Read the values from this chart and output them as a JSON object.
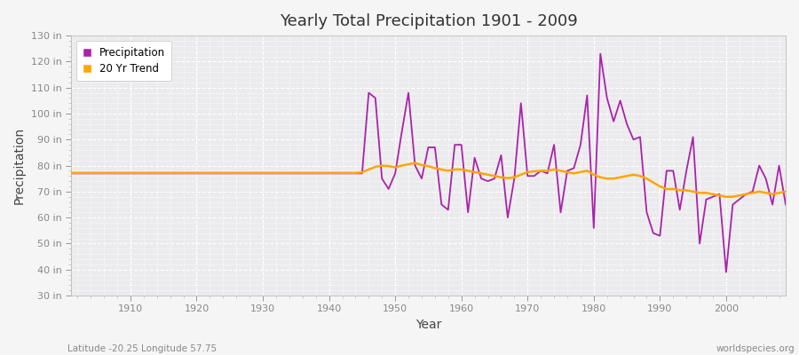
{
  "title": "Yearly Total Precipitation 1901 - 2009",
  "xlabel": "Year",
  "ylabel": "Precipitation",
  "subtitle": "Latitude -20.25 Longitude 57.75",
  "watermark": "worldspecies.org",
  "ylim": [
    30,
    130
  ],
  "yticks": [
    30,
    40,
    50,
    60,
    70,
    80,
    90,
    100,
    110,
    120,
    130
  ],
  "ytick_labels": [
    "30 in",
    "40 in",
    "50 in",
    "60 in",
    "70 in",
    "80 in",
    "90 in",
    "100 in",
    "110 in",
    "120 in",
    "130 in"
  ],
  "xlim": [
    1901,
    2009
  ],
  "xticks": [
    1910,
    1920,
    1930,
    1940,
    1950,
    1960,
    1970,
    1980,
    1990,
    2000
  ],
  "precip_color": "#AA22AA",
  "trend_color": "#FFA500",
  "fig_bg_color": "#F5F5F5",
  "ax_bg_color": "#EBEBEE",
  "grid_color": "#FFFFFF",
  "years": [
    1901,
    1902,
    1903,
    1904,
    1905,
    1906,
    1907,
    1908,
    1909,
    1910,
    1911,
    1912,
    1913,
    1914,
    1915,
    1916,
    1917,
    1918,
    1919,
    1920,
    1921,
    1922,
    1923,
    1924,
    1925,
    1926,
    1927,
    1928,
    1929,
    1930,
    1931,
    1932,
    1933,
    1934,
    1935,
    1936,
    1937,
    1938,
    1939,
    1940,
    1941,
    1942,
    1943,
    1944,
    1945,
    1946,
    1947,
    1948,
    1949,
    1950,
    1951,
    1952,
    1953,
    1954,
    1955,
    1956,
    1957,
    1958,
    1959,
    1960,
    1961,
    1962,
    1963,
    1964,
    1965,
    1966,
    1967,
    1968,
    1969,
    1970,
    1971,
    1972,
    1973,
    1974,
    1975,
    1976,
    1977,
    1978,
    1979,
    1980,
    1981,
    1982,
    1983,
    1984,
    1985,
    1986,
    1987,
    1988,
    1989,
    1990,
    1991,
    1992,
    1993,
    1994,
    1995,
    1996,
    1997,
    1998,
    1999,
    2000,
    2001,
    2002,
    2003,
    2004,
    2005,
    2006,
    2007,
    2008,
    2009
  ],
  "precip": [
    77,
    77,
    77,
    77,
    77,
    77,
    77,
    77,
    77,
    77,
    77,
    77,
    77,
    77,
    77,
    77,
    77,
    77,
    77,
    77,
    77,
    77,
    77,
    77,
    77,
    77,
    77,
    77,
    77,
    77,
    77,
    77,
    77,
    77,
    77,
    77,
    77,
    77,
    77,
    77,
    77,
    77,
    77,
    77,
    77,
    108,
    106,
    75,
    71,
    77,
    93,
    108,
    80,
    75,
    87,
    87,
    65,
    63,
    88,
    88,
    62,
    83,
    75,
    74,
    75,
    84,
    60,
    75,
    104,
    76,
    76,
    78,
    77,
    88,
    62,
    78,
    79,
    88,
    107,
    56,
    123,
    106,
    97,
    105,
    96,
    90,
    91,
    62,
    54,
    53,
    78,
    78,
    63,
    78,
    91,
    50,
    67,
    68,
    69,
    39,
    65,
    67,
    69,
    70,
    80,
    75,
    65,
    80,
    65
  ],
  "trend": [
    77.2,
    77.2,
    77.2,
    77.2,
    77.2,
    77.2,
    77.2,
    77.2,
    77.2,
    77.2,
    77.2,
    77.2,
    77.2,
    77.2,
    77.2,
    77.2,
    77.2,
    77.2,
    77.2,
    77.2,
    77.2,
    77.2,
    77.2,
    77.2,
    77.2,
    77.2,
    77.2,
    77.2,
    77.2,
    77.2,
    77.2,
    77.2,
    77.2,
    77.2,
    77.2,
    77.2,
    77.2,
    77.2,
    77.2,
    77.2,
    77.2,
    77.2,
    77.2,
    77.2,
    77.4,
    78.5,
    79.5,
    80.0,
    79.8,
    79.3,
    80.0,
    80.5,
    81.0,
    80.2,
    79.8,
    79.0,
    78.5,
    78.0,
    78.5,
    78.5,
    78.0,
    77.5,
    77.0,
    76.5,
    76.0,
    75.5,
    75.2,
    75.5,
    76.5,
    77.5,
    77.8,
    78.0,
    78.0,
    78.5,
    78.0,
    77.5,
    77.0,
    77.5,
    78.0,
    76.5,
    75.5,
    75.0,
    75.0,
    75.5,
    76.0,
    76.5,
    76.0,
    75.0,
    73.5,
    72.0,
    71.0,
    71.0,
    70.5,
    70.5,
    70.0,
    69.5,
    69.5,
    69.0,
    68.5,
    68.0,
    68.0,
    68.5,
    69.0,
    69.5,
    70.0,
    69.5,
    69.0,
    69.5,
    70.0
  ]
}
